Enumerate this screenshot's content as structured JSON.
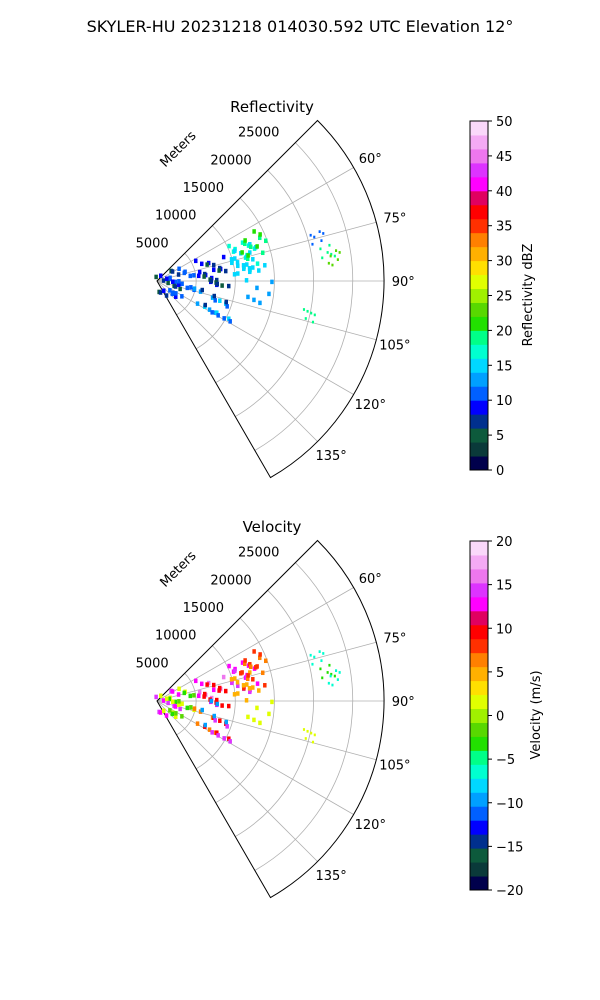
{
  "figure_title": "SKYLER-HU  20231218  014030.592 UTC Elevation 12°",
  "chart_data": [
    {
      "type": "polar-sector",
      "title": "Reflectivity",
      "range_label": "Meters",
      "range_ticks": [
        5000,
        10000,
        15000,
        20000,
        25000
      ],
      "range_tick_labels": [
        "5000",
        "10000",
        "15000",
        "20000",
        "25000"
      ],
      "rmax": 29000,
      "azimuth_range": [
        45,
        150
      ],
      "azimuth_ticks": [
        60,
        75,
        90,
        105,
        120,
        135
      ],
      "azimuth_tick_labels": [
        "60°",
        "75°",
        "90°",
        "105°",
        "120°",
        "135°"
      ],
      "grid": true,
      "colorbar": {
        "label": "Reflectivity dBZ",
        "min": 0,
        "max": 50,
        "ticks": [
          0,
          5,
          10,
          15,
          20,
          25,
          30,
          35,
          40,
          45,
          50
        ],
        "tick_labels": [
          "0",
          "5",
          "10",
          "15",
          "20",
          "25",
          "30",
          "35",
          "40",
          "45",
          "50"
        ]
      },
      "echoes": [
        {
          "az": 73,
          "r": 11000,
          "value": 16
        },
        {
          "az": 70,
          "r": 11800,
          "value": 17
        },
        {
          "az": 76,
          "r": 10800,
          "value": 15
        },
        {
          "az": 74,
          "r": 12500,
          "value": 14
        },
        {
          "az": 69,
          "r": 13000,
          "value": 19
        },
        {
          "az": 78,
          "r": 11500,
          "value": 15
        },
        {
          "az": 66,
          "r": 12500,
          "value": 20
        },
        {
          "az": 80,
          "r": 11000,
          "value": 14
        },
        {
          "az": 75,
          "r": 7000,
          "value": 8
        },
        {
          "az": 78,
          "r": 6400,
          "value": 9
        },
        {
          "az": 81,
          "r": 7500,
          "value": 7
        },
        {
          "az": 83,
          "r": 7000,
          "value": 4
        },
        {
          "az": 84,
          "r": 3000,
          "value": 10
        },
        {
          "az": 86,
          "r": 2500,
          "value": 11
        },
        {
          "az": 88,
          "r": 1200,
          "value": 5
        },
        {
          "az": 92,
          "r": 1000,
          "value": 6
        },
        {
          "az": 96,
          "r": 1800,
          "value": 8
        },
        {
          "az": 100,
          "r": 3000,
          "value": 10
        },
        {
          "az": 110,
          "r": 6500,
          "value": 13
        },
        {
          "az": 112,
          "r": 8000,
          "value": 14
        },
        {
          "az": 115,
          "r": 8800,
          "value": 10
        },
        {
          "az": 100,
          "r": 7200,
          "value": 6
        },
        {
          "az": 74,
          "r": 21000,
          "value": 11
        },
        {
          "az": 80,
          "r": 22000,
          "value": 19
        },
        {
          "az": 82,
          "r": 22500,
          "value": 22
        },
        {
          "az": 102,
          "r": 20000,
          "value": 19
        },
        {
          "az": 96,
          "r": 13000,
          "value": 12
        }
      ]
    },
    {
      "type": "polar-sector",
      "title": "Velocity",
      "range_label": "Meters",
      "range_ticks": [
        5000,
        10000,
        15000,
        20000,
        25000
      ],
      "range_tick_labels": [
        "5000",
        "10000",
        "15000",
        "20000",
        "25000"
      ],
      "rmax": 29000,
      "azimuth_range": [
        45,
        150
      ],
      "azimuth_ticks": [
        60,
        75,
        90,
        105,
        120,
        135
      ],
      "azimuth_tick_labels": [
        "60°",
        "75°",
        "90°",
        "105°",
        "120°",
        "135°"
      ],
      "grid": true,
      "colorbar": {
        "label": "Velocity (m/s)",
        "min": -20,
        "max": 20,
        "ticks": [
          -20,
          -15,
          -10,
          -5,
          0,
          5,
          10,
          15,
          20
        ],
        "tick_labels": [
          "−20",
          "−15",
          "−10",
          "−5",
          "0",
          "5",
          "10",
          "15",
          "20"
        ]
      },
      "echoes": [
        {
          "az": 73,
          "r": 11000,
          "value": 13
        },
        {
          "az": 70,
          "r": 11800,
          "value": 12
        },
        {
          "az": 76,
          "r": 10800,
          "value": 14
        },
        {
          "az": 74,
          "r": 12500,
          "value": 8
        },
        {
          "az": 69,
          "r": 13000,
          "value": 6
        },
        {
          "az": 78,
          "r": 11500,
          "value": 4
        },
        {
          "az": 66,
          "r": 12500,
          "value": 8
        },
        {
          "az": 80,
          "r": 11000,
          "value": 5
        },
        {
          "az": 75,
          "r": 7000,
          "value": 16
        },
        {
          "az": 78,
          "r": 6400,
          "value": 13
        },
        {
          "az": 81,
          "r": 7500,
          "value": 10
        },
        {
          "az": 83,
          "r": 7000,
          "value": 9
        },
        {
          "az": 84,
          "r": 3000,
          "value": 2
        },
        {
          "az": 86,
          "r": 2500,
          "value": -3
        },
        {
          "az": 88,
          "r": 1200,
          "value": 14
        },
        {
          "az": 92,
          "r": 1000,
          "value": 12
        },
        {
          "az": 96,
          "r": 1800,
          "value": 1
        },
        {
          "az": 100,
          "r": 3000,
          "value": -2
        },
        {
          "az": 110,
          "r": 6500,
          "value": 6
        },
        {
          "az": 112,
          "r": 8000,
          "value": 10
        },
        {
          "az": 115,
          "r": 8800,
          "value": 15
        },
        {
          "az": 100,
          "r": 7200,
          "value": -10
        },
        {
          "az": 74,
          "r": 21000,
          "value": -6
        },
        {
          "az": 80,
          "r": 22000,
          "value": -4
        },
        {
          "az": 82,
          "r": 22500,
          "value": -7
        },
        {
          "az": 102,
          "r": 20000,
          "value": 2
        },
        {
          "az": 96,
          "r": 13000,
          "value": 1
        }
      ]
    }
  ],
  "colormaps": {
    "reflectivity": [
      "#00004c",
      "#0a3a3a",
      "#0d5a3c",
      "#00308e",
      "#0000ff",
      "#0060ff",
      "#00a0ff",
      "#00d8ff",
      "#00ffd0",
      "#00ff88",
      "#22e000",
      "#58d800",
      "#a0f000",
      "#e0ff00",
      "#ffe000",
      "#ffb000",
      "#ff8000",
      "#ff3000",
      "#ff0000",
      "#e00060",
      "#ff00ff",
      "#dd33ff",
      "#ee77ee",
      "#f4aaf4",
      "#fad8fa"
    ],
    "velocity": [
      "#00004c",
      "#0a3a3a",
      "#0d5a3c",
      "#00308e",
      "#0000ff",
      "#0060ff",
      "#00a0ff",
      "#00d8ff",
      "#00ffd0",
      "#00ff88",
      "#22e000",
      "#58d800",
      "#a0f000",
      "#e0ff00",
      "#ffe000",
      "#ffb000",
      "#ff8000",
      "#ff3000",
      "#ff0000",
      "#e00060",
      "#ff00ff",
      "#dd33ff",
      "#ee77ee",
      "#f4aaf4",
      "#fad8fa"
    ]
  }
}
